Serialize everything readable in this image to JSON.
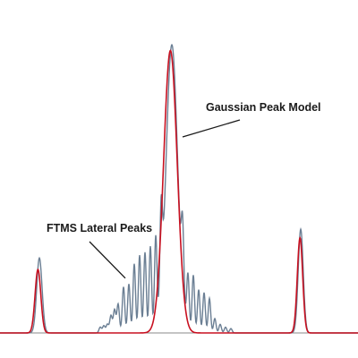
{
  "chart_data": {
    "type": "line",
    "xlabel": "",
    "ylabel": "",
    "xlim": [
      0,
      100
    ],
    "ylim": [
      0,
      1
    ],
    "grid": false,
    "series": [
      {
        "role": "measured",
        "color": "#6b7f94",
        "peaks": [
          {
            "center": 11,
            "height": 0.26,
            "width": 0.75
          },
          {
            "center": 48,
            "height": 1.0,
            "width": 1.6
          },
          {
            "center": 84,
            "height": 0.36,
            "width": 0.7
          }
        ],
        "lateral_peaks": [
          {
            "center": 28,
            "height": 0.02
          },
          {
            "center": 29,
            "height": 0.025
          },
          {
            "center": 30,
            "height": 0.03
          },
          {
            "center": 31,
            "height": 0.06
          },
          {
            "center": 32,
            "height": 0.08
          },
          {
            "center": 33,
            "height": 0.1
          },
          {
            "center": 34.5,
            "height": 0.16
          },
          {
            "center": 36,
            "height": 0.17
          },
          {
            "center": 37.5,
            "height": 0.24
          },
          {
            "center": 39,
            "height": 0.27
          },
          {
            "center": 40.5,
            "height": 0.28
          },
          {
            "center": 42,
            "height": 0.3
          },
          {
            "center": 43.5,
            "height": 0.32
          },
          {
            "center": 45,
            "height": 0.3
          },
          {
            "center": 51,
            "height": 0.24
          },
          {
            "center": 52.5,
            "height": 0.19
          },
          {
            "center": 54,
            "height": 0.2
          },
          {
            "center": 55.5,
            "height": 0.15
          },
          {
            "center": 57,
            "height": 0.14
          },
          {
            "center": 58.5,
            "height": 0.12
          },
          {
            "center": 60,
            "height": 0.05
          },
          {
            "center": 61.5,
            "height": 0.03
          },
          {
            "center": 63,
            "height": 0.02
          },
          {
            "center": 64.5,
            "height": 0.015
          }
        ]
      },
      {
        "role": "model",
        "color": "#c81020",
        "peaks": [
          {
            "center": 10.6,
            "height": 0.22,
            "width": 0.8
          },
          {
            "center": 47.6,
            "height": 0.98,
            "width": 1.9
          },
          {
            "center": 83.8,
            "height": 0.33,
            "width": 0.75
          }
        ]
      }
    ],
    "annotations": [
      {
        "id": "gaussian",
        "text": "Gaussian Peak Model",
        "points_to_x": 51,
        "points_to_y": 0.68
      },
      {
        "id": "ftms",
        "text": "FTMS Lateral Peaks",
        "points_to_x": 35,
        "points_to_y": 0.19
      }
    ]
  }
}
